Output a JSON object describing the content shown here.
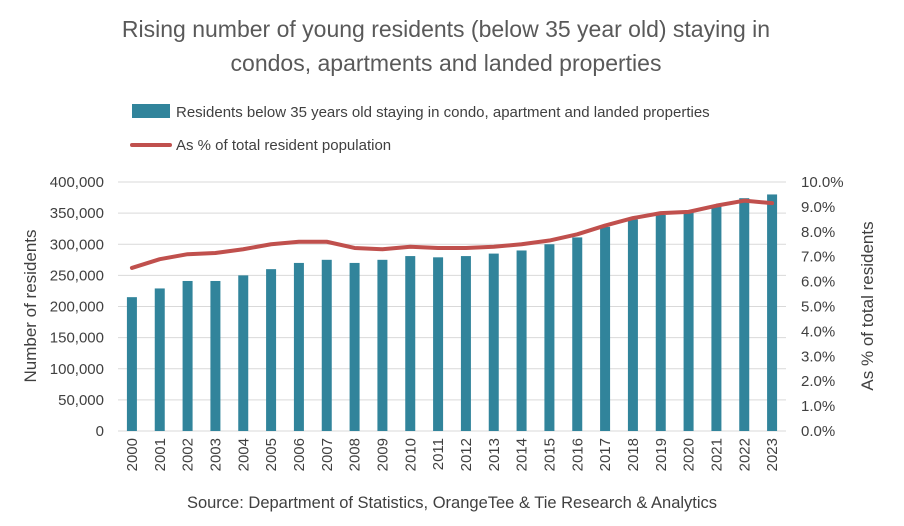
{
  "chart_data": {
    "type": "bar",
    "title": "Rising number of young residents (below 35 year old) staying in condos, apartments and landed properties",
    "title_lines": [
      "Rising number of young residents (below 35 year old) staying in",
      "condos, apartments and landed properties"
    ],
    "categories": [
      "2000",
      "2001",
      "2002",
      "2003",
      "2004",
      "2005",
      "2006",
      "2007",
      "2008",
      "2009",
      "2010",
      "2011",
      "2012",
      "2013",
      "2014",
      "2015",
      "2016",
      "2017",
      "2018",
      "2019",
      "2020",
      "2021",
      "2022",
      "2023"
    ],
    "series": [
      {
        "name": "Residents below 35 years old staying in condo, apartment and landed properties",
        "type": "bar",
        "axis": "left",
        "color": "#31849b",
        "values": [
          215000,
          229000,
          241000,
          241000,
          250000,
          260000,
          270000,
          275000,
          270000,
          275000,
          281000,
          279000,
          281000,
          285000,
          290000,
          300000,
          311000,
          328000,
          340000,
          347000,
          352000,
          362000,
          374000,
          380000
        ]
      },
      {
        "name": "As % of total resident population",
        "type": "line",
        "axis": "right",
        "color": "#c0504d",
        "values": [
          6.55,
          6.9,
          7.1,
          7.15,
          7.3,
          7.5,
          7.6,
          7.6,
          7.35,
          7.3,
          7.4,
          7.35,
          7.35,
          7.4,
          7.5,
          7.65,
          7.9,
          8.25,
          8.55,
          8.75,
          8.8,
          9.05,
          9.25,
          9.15
        ]
      }
    ],
    "ylabel": "Number of residents",
    "ylabel_right": "As % of total residents",
    "ylim": [
      0,
      400000
    ],
    "ylim_right": [
      0,
      10
    ],
    "yticks": [
      "0",
      "50,000",
      "100,000",
      "150,000",
      "200,000",
      "250,000",
      "300,000",
      "350,000",
      "400,000"
    ],
    "yticks_right": [
      "0.0%",
      "1.0%",
      "2.0%",
      "3.0%",
      "4.0%",
      "5.0%",
      "6.0%",
      "7.0%",
      "8.0%",
      "9.0%",
      "10.0%"
    ],
    "grid": true,
    "legend": "top",
    "source": "Source: Department of Statistics, OrangeTee & Tie Research & Analytics"
  }
}
